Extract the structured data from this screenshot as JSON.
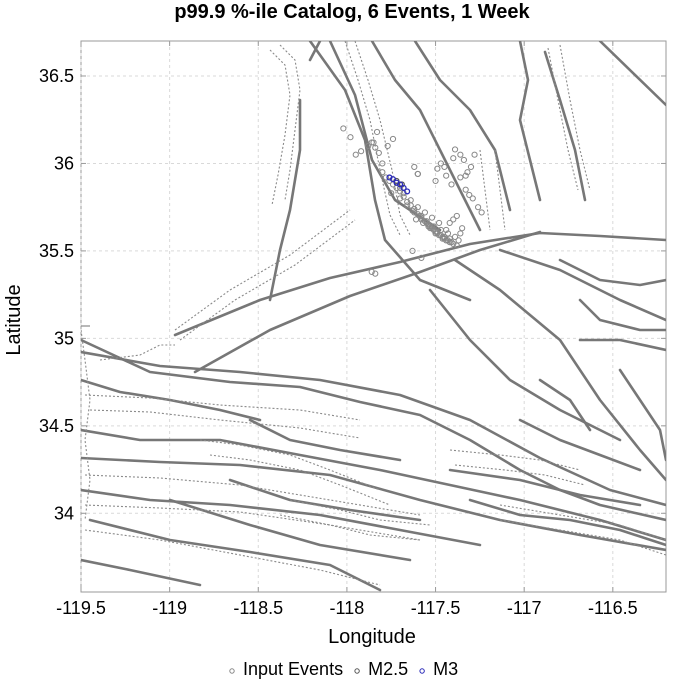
{
  "chart_data": {
    "type": "scatter",
    "title": "p99.9 %-ile Catalog, 6 Events, 1 Week",
    "xlabel": "Longitude",
    "ylabel": "Latitude",
    "xlim": [
      -119.5,
      -116.2
    ],
    "ylim": [
      33.55,
      36.7
    ],
    "xticks": [
      -119.5,
      -119,
      -118.5,
      -118,
      -117.5,
      -117,
      -116.5
    ],
    "xtick_labels": [
      "-119.5",
      "-119",
      "-118.5",
      "-118",
      "-117.5",
      "-117",
      "-116.5"
    ],
    "yticks": [
      34,
      34.5,
      35,
      35.5,
      36,
      36.5
    ],
    "ytick_labels": [
      "34",
      "34.5",
      "35",
      "35.5",
      "36",
      "36.5"
    ],
    "grid": true,
    "legend": {
      "placement": "bottom",
      "entries": [
        {
          "label": "Input Events",
          "color": "#888888"
        },
        {
          "label": "M2.5",
          "color": "#555555"
        },
        {
          "label": "M3",
          "color": "#2a2ab8"
        }
      ]
    },
    "series": [
      {
        "name": "Input Events",
        "color": "#888888",
        "x": [
          -117.95,
          -117.92,
          -117.88,
          -117.86,
          -117.84,
          -117.82,
          -117.8,
          -117.78,
          -117.76,
          -117.74,
          -117.72,
          -117.7,
          -117.68,
          -117.66,
          -117.64,
          -117.62,
          -117.6,
          -117.58,
          -117.56,
          -117.54,
          -117.52,
          -117.5,
          -117.48,
          -117.46,
          -117.44,
          -117.42,
          -117.4,
          -117.38,
          -117.68,
          -117.64,
          -117.6,
          -117.56,
          -117.52,
          -117.48,
          -117.44,
          -117.7,
          -117.66,
          -117.62,
          -117.58,
          -117.54,
          -117.5,
          -117.46,
          -117.42,
          -117.58,
          -117.55,
          -117.53,
          -117.51,
          -117.49,
          -117.47,
          -117.45,
          -117.43,
          -117.41,
          -117.61,
          -117.57,
          -117.53,
          -117.49,
          -117.45,
          -117.63,
          -117.59,
          -117.55,
          -117.51,
          -117.47,
          -117.43,
          -117.39,
          -117.37,
          -117.36,
          -117.35,
          -117.42,
          -117.4,
          -117.38,
          -117.3,
          -117.32,
          -117.34,
          -117.28,
          -117.45,
          -117.47,
          -117.49,
          -117.6,
          -117.7,
          -117.75,
          -117.8,
          -117.77,
          -117.74,
          -117.36,
          -117.33,
          -118.02,
          -117.98,
          -117.86,
          -117.84,
          -117.63,
          -117.58,
          -117.62,
          -117.5,
          -117.44,
          -117.4,
          -117.36,
          -117.33,
          -117.31,
          -117.29,
          -117.26,
          -117.24,
          -117.52,
          -117.55,
          -117.85,
          -117.83,
          -117.6,
          -117.41,
          -117.39
        ],
        "y": [
          36.05,
          36.07,
          36.1,
          36.12,
          36.09,
          36.06,
          35.95,
          35.92,
          35.9,
          35.88,
          35.86,
          35.84,
          35.81,
          35.78,
          35.76,
          35.74,
          35.71,
          35.69,
          35.67,
          35.65,
          35.63,
          35.61,
          35.59,
          35.57,
          35.56,
          35.55,
          35.54,
          35.53,
          35.83,
          35.79,
          35.75,
          35.72,
          35.69,
          35.66,
          35.62,
          35.8,
          35.76,
          35.72,
          35.68,
          35.64,
          35.6,
          35.58,
          35.57,
          35.7,
          35.67,
          35.64,
          35.62,
          35.6,
          35.59,
          35.58,
          35.56,
          35.55,
          35.68,
          35.66,
          35.63,
          35.61,
          35.57,
          35.73,
          35.7,
          35.66,
          35.64,
          35.62,
          35.6,
          35.58,
          35.56,
          35.6,
          35.63,
          35.66,
          35.68,
          35.7,
          35.98,
          35.95,
          36.02,
          36.05,
          35.98,
          36.0,
          35.97,
          35.94,
          35.86,
          35.83,
          36.0,
          36.1,
          36.14,
          36.05,
          35.93,
          36.2,
          36.15,
          35.38,
          35.37,
          35.5,
          35.46,
          35.98,
          35.9,
          35.93,
          36.03,
          35.92,
          35.85,
          35.82,
          35.8,
          35.75,
          35.72,
          35.64,
          35.66,
          36.12,
          36.18,
          35.94,
          35.88,
          36.08
        ],
        "note": ""
      },
      {
        "name": "M2.5",
        "color": "#555555",
        "x": [
          -117.72,
          -117.69
        ],
        "y": [
          35.9,
          35.88
        ]
      },
      {
        "name": "M3",
        "color": "#2a2ab8",
        "x": [
          -117.76,
          -117.74,
          -117.72,
          -117.7,
          -117.68,
          -117.66
        ],
        "y": [
          35.92,
          35.91,
          35.89,
          35.88,
          35.86,
          35.84
        ]
      }
    ]
  }
}
